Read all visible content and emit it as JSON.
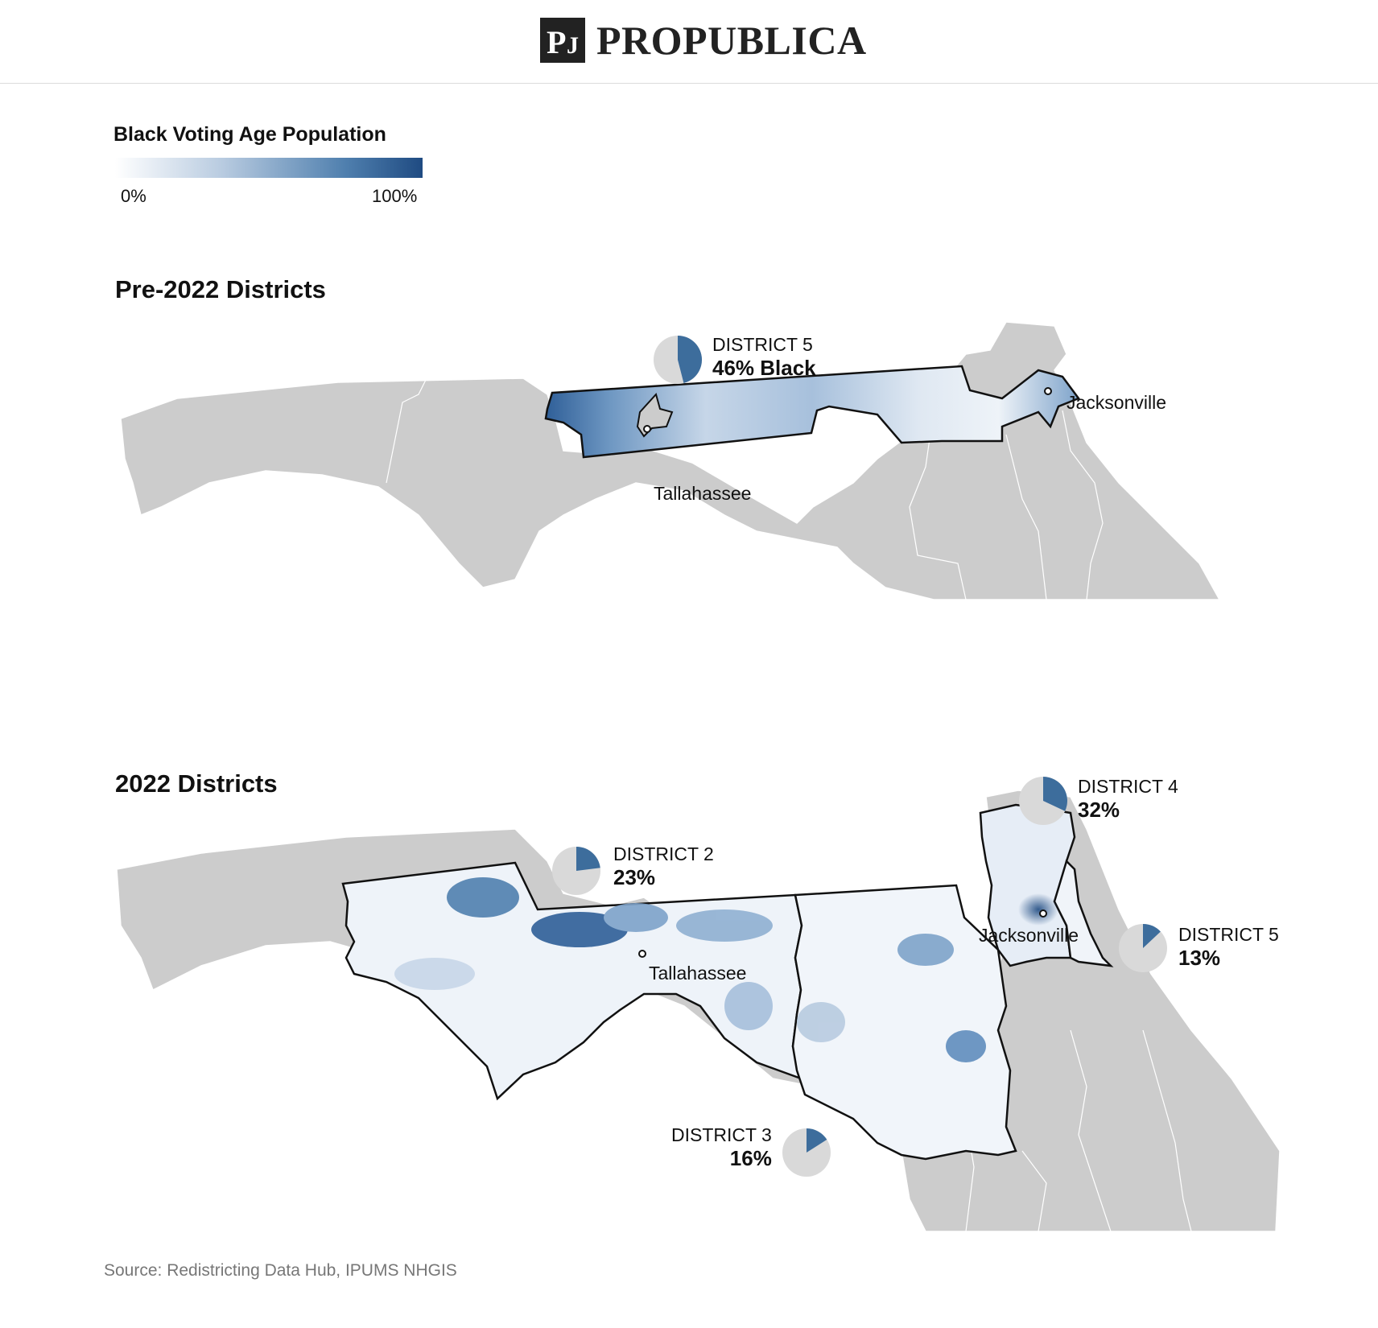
{
  "header": {
    "logo_text_first": "PRO",
    "logo_text_second": "PUBLICA",
    "logo_mark_letters": "PJ"
  },
  "legend": {
    "title": "Black Voting Age Population",
    "min_label": "0%",
    "max_label": "100%",
    "colors": [
      "#ffffff",
      "#b8cbe0",
      "#4f7fae",
      "#1f4b82"
    ]
  },
  "colors": {
    "land": "#cccccc",
    "district_fill": "#f4f7fb",
    "pie_bg": "#d9d9d9",
    "pie_fill": "#3d6d9c"
  },
  "pre": {
    "title": "Pre-2022 Districts",
    "district5": {
      "name": "DISTRICT 5",
      "pct_label": "46% Black",
      "value": 0.46
    },
    "cities": {
      "jacksonville": "Jacksonville",
      "tallahassee": "Tallahassee"
    }
  },
  "new": {
    "title": "2022 Districts",
    "district2": {
      "name": "DISTRICT 2",
      "pct_label": "23%",
      "value": 0.23
    },
    "district3": {
      "name": "DISTRICT 3",
      "pct_label": "16%",
      "value": 0.16
    },
    "district4": {
      "name": "DISTRICT 4",
      "pct_label": "32%",
      "value": 0.32
    },
    "district5": {
      "name": "DISTRICT 5",
      "pct_label": "13%",
      "value": 0.13
    },
    "cities": {
      "jacksonville": "Jacksonville",
      "tallahassee": "Tallahassee"
    }
  },
  "source": "Source: Redistricting Data Hub, IPUMS NHGIS"
}
